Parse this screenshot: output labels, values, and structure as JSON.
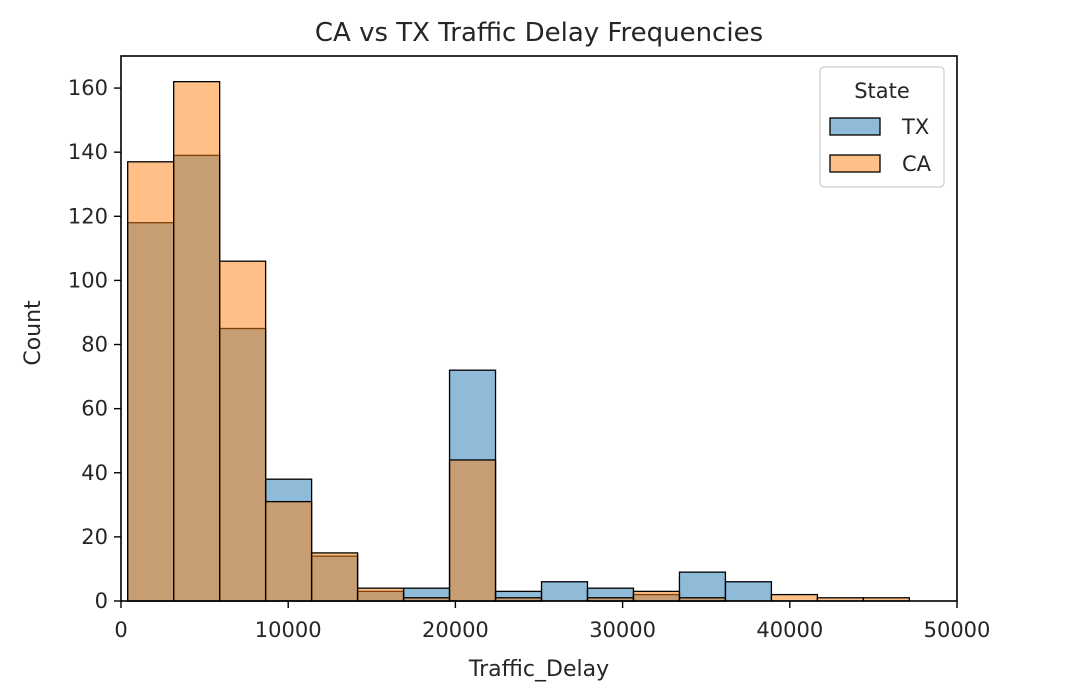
{
  "chart_data": {
    "type": "histogram",
    "title": "CA vs TX Traffic Delay Frequencies",
    "xlabel": "Traffic_Delay",
    "ylabel": "Count",
    "xlim": [
      0,
      50000
    ],
    "ylim": [
      0,
      170
    ],
    "x_ticks": [
      0,
      10000,
      20000,
      30000,
      40000,
      50000
    ],
    "y_ticks": [
      0,
      20,
      40,
      60,
      80,
      100,
      120,
      140,
      160
    ],
    "bin_edges": [
      400,
      3150,
      5900,
      8650,
      11400,
      14150,
      16900,
      19650,
      22400,
      25150,
      27900,
      30650,
      33400,
      36150,
      38900,
      41650,
      44400,
      47150
    ],
    "series": [
      {
        "name": "TX",
        "color": "#1f77b4",
        "values": [
          118,
          139,
          85,
          38,
          14,
          3,
          4,
          72,
          3,
          6,
          4,
          2,
          9,
          6,
          0,
          0,
          0
        ]
      },
      {
        "name": "CA",
        "color": "#ff7f0e",
        "values": [
          137,
          162,
          106,
          31,
          15,
          4,
          1,
          44,
          1,
          0,
          1,
          3,
          1,
          0,
          2,
          1,
          1
        ]
      }
    ],
    "grid": false,
    "legend": {
      "title": "State",
      "placement": "top-right",
      "entries": [
        "TX",
        "CA"
      ]
    }
  }
}
